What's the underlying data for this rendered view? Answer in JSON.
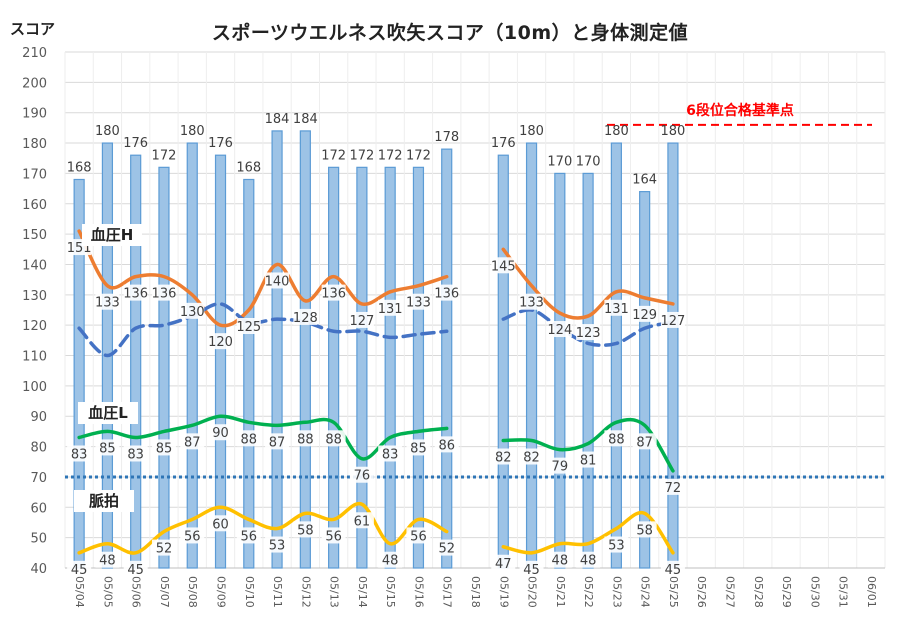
{
  "chart_data": {
    "type": "bar",
    "title": "スポーツウエルネス吹矢スコア（10m）と身体測定値",
    "ylabel": "スコア",
    "ylim": [
      40,
      210
    ],
    "yticks": [
      40,
      50,
      60,
      70,
      80,
      90,
      100,
      110,
      120,
      130,
      140,
      150,
      160,
      170,
      180,
      190,
      200,
      210
    ],
    "grid": true,
    "categories": [
      "05/04",
      "05/05",
      "05/06",
      "05/07",
      "05/08",
      "05/09",
      "05/10",
      "05/11",
      "05/12",
      "05/13",
      "05/14",
      "05/15",
      "05/16",
      "05/17",
      "05/18",
      "05/19",
      "05/20",
      "05/21",
      "05/22",
      "05/23",
      "05/24",
      "05/25",
      "05/26",
      "05/27",
      "05/28",
      "05/29",
      "05/30",
      "05/31",
      "06/01"
    ],
    "series": [
      {
        "name": "",
        "kind": "bar",
        "color": "#9dc3e6",
        "values": [
          168,
          180,
          176,
          172,
          180,
          176,
          168,
          184,
          184,
          172,
          172,
          172,
          172,
          178,
          null,
          176,
          180,
          170,
          170,
          180,
          164,
          180,
          null,
          null,
          null,
          null,
          null,
          null,
          null
        ],
        "labels": [
          "168",
          "180",
          "176",
          "172",
          "180",
          "176",
          "168",
          "184",
          "184",
          "172",
          "172",
          "172",
          "172",
          "178",
          "",
          "176",
          "180",
          "170",
          "170",
          "180",
          "164",
          "180",
          "",
          "",
          "",
          "",
          "",
          "",
          ""
        ]
      },
      {
        "name": "血圧H",
        "kind": "line",
        "color": "#ed7d31",
        "values": [
          151,
          133,
          136,
          136,
          130,
          120,
          125,
          140,
          128,
          136,
          127,
          131,
          133,
          136,
          null,
          145,
          133,
          124,
          123,
          131,
          129,
          127,
          null,
          null,
          null,
          null,
          null,
          null,
          null
        ]
      },
      {
        "name": "",
        "kind": "dashed-line",
        "color": "#4472c4",
        "values": [
          119,
          110,
          119,
          120,
          123,
          127,
          121,
          122,
          121,
          118,
          118,
          116,
          117,
          118,
          null,
          122,
          125,
          119,
          114,
          114,
          119,
          121,
          null,
          null,
          null,
          null,
          null,
          null,
          null
        ]
      },
      {
        "name": "血圧L",
        "kind": "line",
        "color": "#00b050",
        "values": [
          83,
          85,
          83,
          85,
          87,
          90,
          88,
          87,
          88,
          88,
          76,
          83,
          85,
          86,
          null,
          82,
          82,
          79,
          81,
          88,
          87,
          72,
          null,
          null,
          null,
          null,
          null,
          null,
          null
        ]
      },
      {
        "name": "脈拍",
        "kind": "line",
        "color": "#ffc000",
        "values": [
          45,
          48,
          45,
          52,
          56,
          60,
          56,
          53,
          58,
          56,
          61,
          48,
          56,
          52,
          null,
          47,
          45,
          48,
          48,
          53,
          58,
          45,
          null,
          null,
          null,
          null,
          null,
          null,
          null
        ]
      }
    ],
    "reference_lines": [
      {
        "label": "6段位合格基準点",
        "value": 186,
        "color": "#ff0000",
        "style": "dashed"
      },
      {
        "label": "",
        "value": 70,
        "color": "#2e75b6",
        "style": "dotted"
      }
    ]
  }
}
